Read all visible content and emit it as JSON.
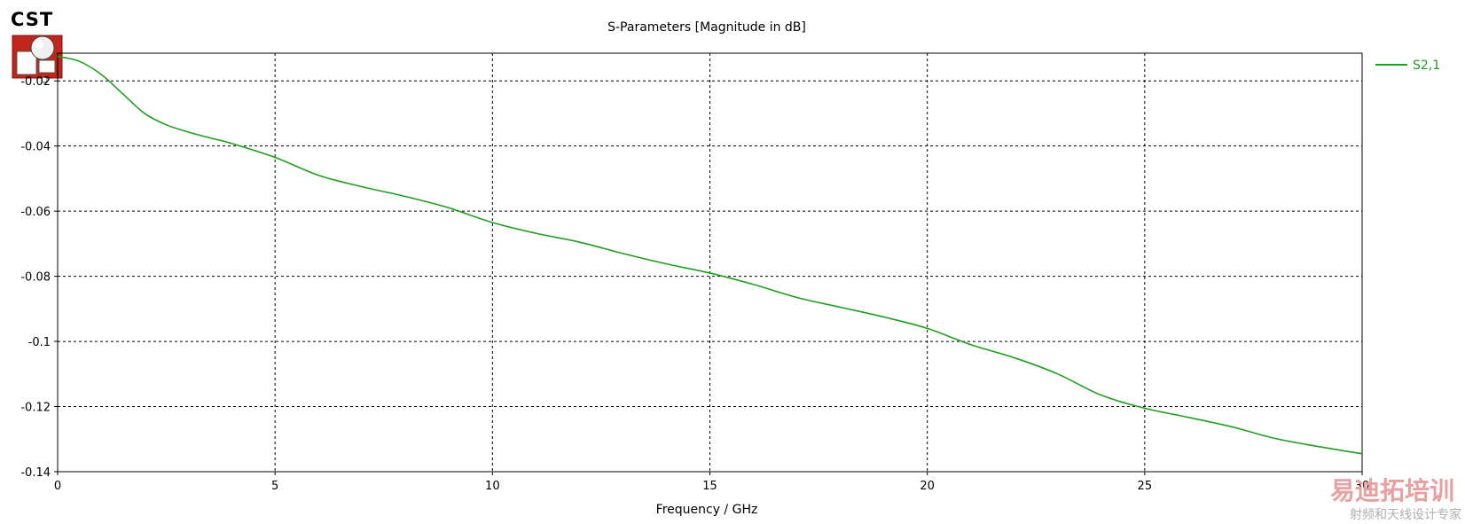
{
  "logo": {
    "text": "CST",
    "icon": "cst-logo-icon"
  },
  "watermark": {
    "line1": "易迪拓培训",
    "line2": "射频和天线设计专家"
  },
  "chart_data": {
    "type": "line",
    "title": "S-Parameters [Magnitude in dB]",
    "xlabel": "Frequency / GHz",
    "ylabel": "",
    "xlim": [
      0,
      30
    ],
    "ylim": [
      -0.14,
      -0.0115
    ],
    "x_ticks": [
      0,
      5,
      10,
      15,
      20,
      25,
      30
    ],
    "x_tick_labels": [
      "0",
      "5",
      "10",
      "15",
      "20",
      "25",
      "30"
    ],
    "y_ticks": [
      -0.02,
      -0.04,
      -0.06,
      -0.08,
      -0.1,
      -0.12,
      -0.14
    ],
    "y_tick_labels": [
      "-0.02",
      "-0.04",
      "-0.06",
      "-0.08",
      "-0.1",
      "-0.12",
      "-0.14"
    ],
    "grid": true,
    "legend_position": "top-right",
    "series": [
      {
        "name": "S2,1",
        "color": "#1f9e1f",
        "x": [
          0,
          0.5,
          1,
          1.5,
          2,
          2.5,
          3,
          3.5,
          4,
          5,
          6,
          7,
          8,
          9,
          10,
          11,
          12,
          13,
          14,
          15,
          16,
          17,
          18,
          19,
          20,
          21,
          22,
          23,
          24,
          25,
          26,
          27,
          28,
          29,
          30
        ],
        "y": [
          -0.0125,
          -0.014,
          -0.018,
          -0.024,
          -0.03,
          -0.0335,
          -0.0357,
          -0.0375,
          -0.0392,
          -0.0435,
          -0.049,
          -0.0525,
          -0.0555,
          -0.059,
          -0.0635,
          -0.0668,
          -0.0695,
          -0.073,
          -0.0762,
          -0.079,
          -0.0825,
          -0.0865,
          -0.0895,
          -0.0925,
          -0.096,
          -0.101,
          -0.105,
          -0.11,
          -0.1165,
          -0.1205,
          -0.1233,
          -0.1262,
          -0.1298,
          -0.1323,
          -0.1345
        ]
      }
    ]
  }
}
